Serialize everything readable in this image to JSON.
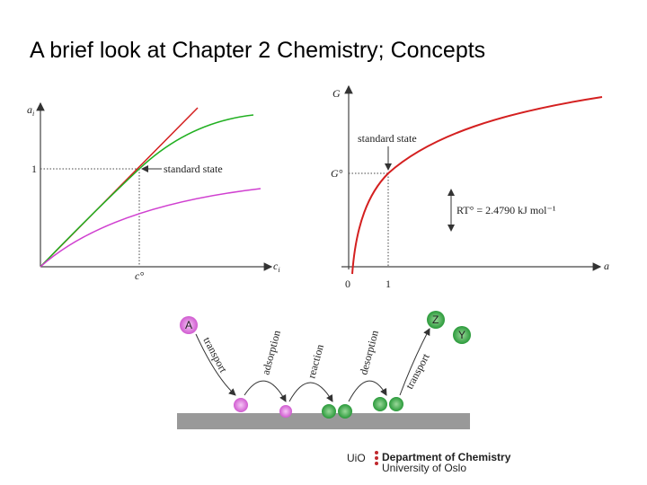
{
  "title": "A brief look at Chapter 2 Chemistry;   Concepts",
  "left_graph": {
    "y_label": {
      "main": "a",
      "sub": "i"
    },
    "x_label": {
      "main": "c",
      "sub": "i"
    },
    "y_tick": "1",
    "x_tick": "c°",
    "annotation": "standard state"
  },
  "right_graph": {
    "y_label": "G",
    "y_tick": "G°",
    "x_label": "a",
    "x_ticks": [
      "0",
      "1"
    ],
    "annotation": "standard state",
    "energy_note": "RT° = 2.4790 kJ mol⁻¹"
  },
  "process": {
    "species": [
      "A",
      "Z",
      "Y"
    ],
    "steps": [
      "transport",
      "adsorption",
      "reaction",
      "desorption",
      "transport"
    ]
  },
  "footer": {
    "short": "UiO",
    "department": "Department of Chemistry",
    "university": "University of Oslo"
  }
}
